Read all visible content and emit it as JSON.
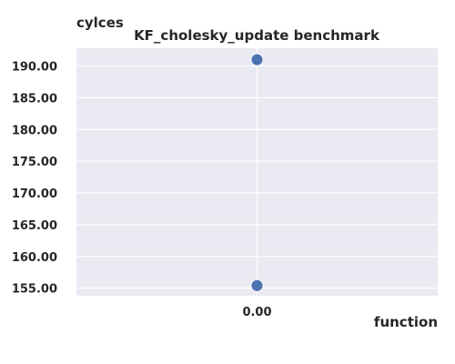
{
  "chart_data": {
    "type": "scatter",
    "title": "KF_cholesky_update benchmark",
    "xlabel": "function",
    "ylabel": "cylces",
    "x_ticks": [
      {
        "value": 0,
        "label": "0.00"
      }
    ],
    "y_ticks": [
      {
        "value": 155,
        "label": "155.00"
      },
      {
        "value": 160,
        "label": "160.00"
      },
      {
        "value": 165,
        "label": "165.00"
      },
      {
        "value": 170,
        "label": "170.00"
      },
      {
        "value": 175,
        "label": "175.00"
      },
      {
        "value": 180,
        "label": "180.00"
      },
      {
        "value": 185,
        "label": "185.00"
      },
      {
        "value": 190,
        "label": "190.00"
      }
    ],
    "xlim": [
      -0.2,
      0.2
    ],
    "ylim": [
      153.8,
      192.8
    ],
    "grid": true,
    "points": [
      {
        "x": 0,
        "y": 191.0
      },
      {
        "x": 0,
        "y": 155.4
      }
    ],
    "colors": {
      "background": "#eaeaf2",
      "grid": "#ffffff",
      "marker": "#4c72b0",
      "text": "#262626"
    }
  }
}
